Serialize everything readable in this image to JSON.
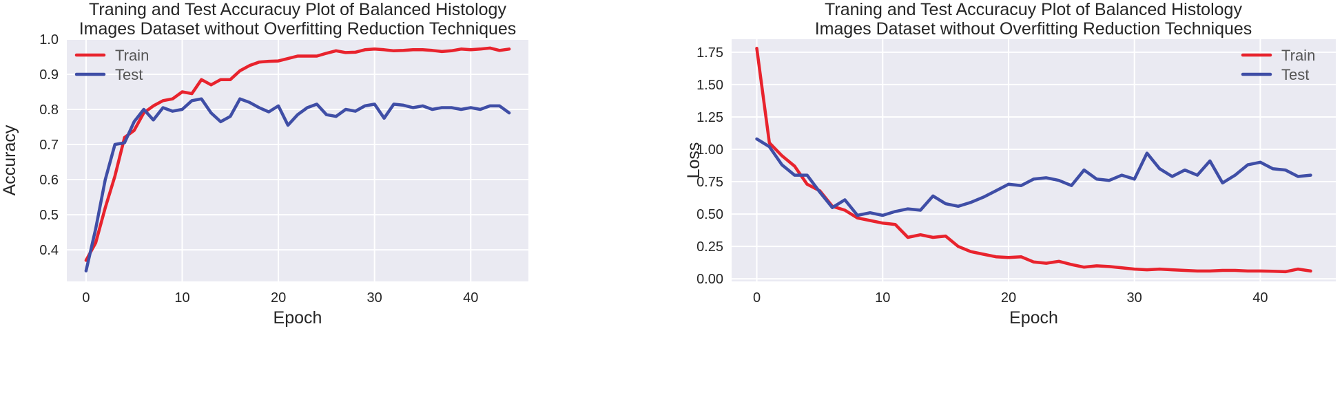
{
  "chart_data": [
    {
      "type": "line",
      "title": [
        "Traning and Test Accuracuy Plot of Balanced Histology",
        "Images Dataset without Overfitting Reduction Techniques"
      ],
      "xlabel": "Epoch",
      "ylabel": "Accuracy",
      "xlim": [
        -2,
        46
      ],
      "ylim": [
        0.31,
        1.0
      ],
      "xticks": [
        0,
        10,
        20,
        30,
        40
      ],
      "yticks": [
        0.4,
        0.5,
        0.6,
        0.7,
        0.8,
        0.9,
        1.0
      ],
      "ytick_labels": [
        "0.4",
        "0.5",
        "0.6",
        "0.7",
        "0.8",
        "0.9",
        "1.0"
      ],
      "grid": true,
      "legend": "top-left",
      "x": [
        0,
        1,
        2,
        3,
        4,
        5,
        6,
        7,
        8,
        9,
        10,
        11,
        12,
        13,
        14,
        15,
        16,
        17,
        18,
        19,
        20,
        21,
        22,
        23,
        24,
        25,
        26,
        27,
        28,
        29,
        30,
        31,
        32,
        33,
        34,
        35,
        36,
        37,
        38,
        39,
        40,
        41,
        42,
        43,
        44
      ],
      "series": [
        {
          "name": "Train",
          "color": "#e8232d",
          "values": [
            0.37,
            0.42,
            0.52,
            0.61,
            0.72,
            0.74,
            0.79,
            0.81,
            0.825,
            0.83,
            0.85,
            0.845,
            0.885,
            0.87,
            0.885,
            0.885,
            0.91,
            0.925,
            0.935,
            0.937,
            0.938,
            0.945,
            0.952,
            0.952,
            0.952,
            0.96,
            0.967,
            0.962,
            0.963,
            0.97,
            0.972,
            0.97,
            0.967,
            0.968,
            0.97,
            0.97,
            0.968,
            0.965,
            0.967,
            0.972,
            0.97,
            0.972,
            0.975,
            0.968,
            0.972
          ]
        },
        {
          "name": "Test",
          "color": "#3f4ea6",
          "values": [
            0.34,
            0.46,
            0.6,
            0.7,
            0.705,
            0.765,
            0.8,
            0.77,
            0.805,
            0.795,
            0.8,
            0.825,
            0.83,
            0.79,
            0.765,
            0.78,
            0.83,
            0.82,
            0.805,
            0.793,
            0.81,
            0.755,
            0.785,
            0.805,
            0.815,
            0.785,
            0.78,
            0.8,
            0.795,
            0.81,
            0.815,
            0.775,
            0.815,
            0.812,
            0.805,
            0.81,
            0.8,
            0.805,
            0.805,
            0.8,
            0.805,
            0.8,
            0.81,
            0.81,
            0.79
          ]
        }
      ]
    },
    {
      "type": "line",
      "title": [
        "Traning and Test Accuracuy Plot of Balanced Histology",
        "Images Dataset without Overfitting Reduction Techniques"
      ],
      "xlabel": "Epoch",
      "ylabel": "Loss",
      "xlim": [
        -2,
        46
      ],
      "ylim": [
        -0.02,
        1.85
      ],
      "xticks": [
        0,
        10,
        20,
        30,
        40
      ],
      "yticks": [
        0.0,
        0.25,
        0.5,
        0.75,
        1.0,
        1.25,
        1.5,
        1.75
      ],
      "ytick_labels": [
        "0.00",
        "0.25",
        "0.50",
        "0.75",
        "1.00",
        "1.25",
        "1.50",
        "1.75"
      ],
      "grid": true,
      "legend": "top-right",
      "x": [
        0,
        1,
        2,
        3,
        4,
        5,
        6,
        7,
        8,
        9,
        10,
        11,
        12,
        13,
        14,
        15,
        16,
        17,
        18,
        19,
        20,
        21,
        22,
        23,
        24,
        25,
        26,
        27,
        28,
        29,
        30,
        31,
        32,
        33,
        34,
        35,
        36,
        37,
        38,
        39,
        40,
        41,
        42,
        43,
        44
      ],
      "series": [
        {
          "name": "Train",
          "color": "#e8232d",
          "values": [
            1.78,
            1.05,
            0.95,
            0.87,
            0.73,
            0.68,
            0.56,
            0.53,
            0.47,
            0.45,
            0.43,
            0.42,
            0.32,
            0.34,
            0.32,
            0.33,
            0.25,
            0.21,
            0.19,
            0.17,
            0.165,
            0.17,
            0.13,
            0.12,
            0.135,
            0.11,
            0.09,
            0.1,
            0.095,
            0.085,
            0.075,
            0.07,
            0.075,
            0.07,
            0.065,
            0.06,
            0.06,
            0.065,
            0.065,
            0.06,
            0.06,
            0.058,
            0.055,
            0.075,
            0.06
          ]
        },
        {
          "name": "Test",
          "color": "#3f4ea6",
          "values": [
            1.08,
            1.02,
            0.88,
            0.8,
            0.8,
            0.67,
            0.55,
            0.61,
            0.49,
            0.51,
            0.49,
            0.52,
            0.54,
            0.53,
            0.64,
            0.58,
            0.56,
            0.59,
            0.63,
            0.68,
            0.73,
            0.72,
            0.77,
            0.78,
            0.76,
            0.72,
            0.84,
            0.77,
            0.76,
            0.8,
            0.77,
            0.97,
            0.85,
            0.79,
            0.84,
            0.8,
            0.91,
            0.74,
            0.8,
            0.88,
            0.9,
            0.85,
            0.84,
            0.79,
            0.8
          ]
        }
      ]
    }
  ]
}
